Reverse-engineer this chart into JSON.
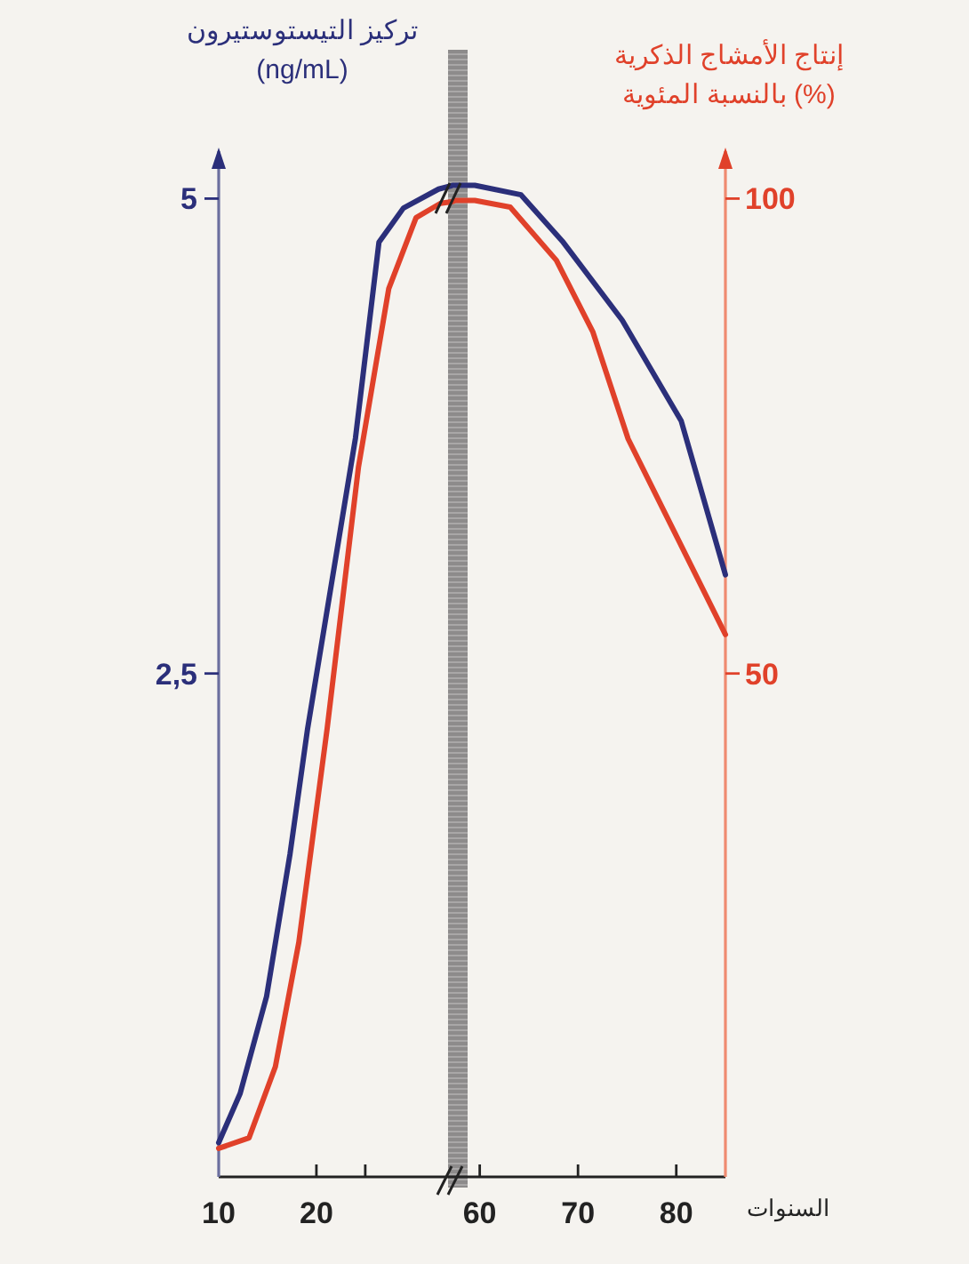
{
  "chart_data": [
    {
      "type": "line",
      "ylabel": "تركيز التيستوستيرون\n(ng/mL)",
      "xlim": [
        10,
        34.2
      ],
      "xticks": [
        10,
        20,
        {
          "value": 25,
          "label": null
        }
      ],
      "ylim": [
        -0.15,
        5.25
      ],
      "yticks": [
        {
          "value": 2.5,
          "label": "2,5"
        },
        5
      ],
      "y2lim": [
        -3,
        105
      ],
      "tick_labels": [
        "x",
        "y"
      ],
      "grid": false,
      "marker": "none",
      "line_style": "solid",
      "series": [
        {
          "color": "#2b2f7a",
          "x": [
            10,
            12.2,
            14.9,
            17.3,
            19.1,
            24,
            26.4,
            28.9,
            32.5,
            34
          ],
          "values": [
            0.03,
            0.29,
            0.8,
            1.55,
            2.21,
            3.74,
            4.77,
            4.95,
            5.05,
            5.07
          ]
        },
        {
          "color": "#e0412a",
          "axis": "y2",
          "x": [
            10,
            13.1,
            15.8,
            18.2,
            21.1,
            24.3,
            27.4,
            30.2,
            32.7,
            34
          ],
          "values": [
            0,
            1.1,
            8.6,
            21.7,
            44.2,
            71.7,
            90.5,
            98,
            99.5,
            99.7
          ]
        }
      ]
    },
    {
      "type": "line",
      "xlabel": "السنوات",
      "y2label": "إنتاج الأمشاج الذكرية\nبالنسبة المئوية (%)",
      "xlim": [
        57.5,
        85
      ],
      "xticks": [
        60,
        70,
        80
      ],
      "ylim": [
        -0.15,
        5.25
      ],
      "y2lim": [
        -3,
        105
      ],
      "y2ticks": [
        50,
        100
      ],
      "tick_labels": [
        "x",
        "y2"
      ],
      "grid": false,
      "marker": "none",
      "line_style": "solid",
      "series": [
        {
          "color": "#2b2f7a",
          "x": [
            57.5,
            59.5,
            64.2,
            68.5,
            74.5,
            80.5,
            85
          ],
          "values": [
            5.07,
            5.07,
            5.02,
            4.77,
            4.36,
            3.83,
            3.02
          ]
        },
        {
          "color": "#e0412a",
          "axis": "y2",
          "x": [
            57.5,
            59.5,
            63.1,
            67.8,
            71.5,
            75.1,
            78.7,
            85
          ],
          "values": [
            99.8,
            99.8,
            99.1,
            93.5,
            86,
            74.7,
            67.2,
            54.1
          ]
        }
      ]
    }
  ]
}
